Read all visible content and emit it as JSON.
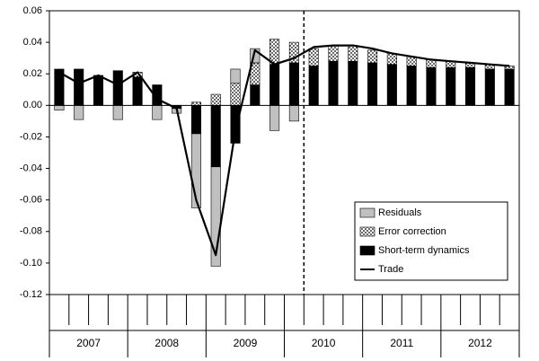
{
  "chart_data": {
    "type": "bar",
    "stacked": true,
    "categories": [
      null,
      null,
      null,
      null,
      null,
      null,
      null,
      null,
      null,
      null,
      null,
      null,
      null,
      null,
      null,
      null,
      null,
      null,
      null,
      null,
      null,
      null,
      null,
      null
    ],
    "groups": [
      "2007",
      "2008",
      "2009",
      "2010",
      "2011",
      "2012"
    ],
    "group_size": 4,
    "vline_after_index": 12,
    "ylim": [
      -0.12,
      0.06
    ],
    "yticks": [
      0.06,
      0.04,
      0.02,
      {
        "value": 0,
        "label": "0.00"
      },
      -0.02,
      -0.04,
      -0.06,
      -0.08,
      {
        "value": -0.1,
        "label": "-0.10"
      },
      -0.12
    ],
    "grid": false,
    "legend": "lower right",
    "series": [
      {
        "name": "Residuals",
        "type": "bar",
        "color": "#c0c0c0",
        "values": [
          -0.003,
          -0.009,
          0,
          -0.009,
          0,
          -0.009,
          -0.003,
          -0.047,
          -0.063,
          0.009,
          0.009,
          -0.016,
          -0.01,
          0,
          0,
          0,
          0,
          0,
          0,
          0,
          0,
          0,
          0,
          0
        ]
      },
      {
        "name": "Error correction",
        "type": "bar",
        "color": "#ffffff",
        "pattern": "dots",
        "values": [
          0,
          0,
          0,
          0,
          0.003,
          0,
          0,
          0.002,
          0.007,
          0.014,
          0.014,
          0.016,
          0.013,
          0.011,
          0.01,
          0.01,
          0.008,
          0.007,
          0.006,
          0.005,
          0.004,
          0.003,
          0.003,
          0.002
        ]
      },
      {
        "name": "Short-term dynamics",
        "type": "bar",
        "color": "#000000",
        "values": [
          0.023,
          0.023,
          0.019,
          0.022,
          0.018,
          0.013,
          -0.002,
          -0.018,
          -0.039,
          -0.024,
          0.013,
          0.026,
          0.027,
          0.025,
          0.028,
          0.028,
          0.027,
          0.026,
          0.025,
          0.024,
          0.024,
          0.024,
          0.023,
          0.023
        ]
      },
      {
        "name": "Trade",
        "type": "line",
        "color": "#000000",
        "values": [
          0.021,
          0.014,
          0.019,
          0.013,
          0.021,
          0.004,
          -0.002,
          -0.06,
          -0.095,
          -0.016,
          0.035,
          0.026,
          0.03,
          0.037,
          0.038,
          0.038,
          0.036,
          0.033,
          0.031,
          0.029,
          0.028,
          0.027,
          0.026,
          0.025
        ]
      }
    ]
  }
}
